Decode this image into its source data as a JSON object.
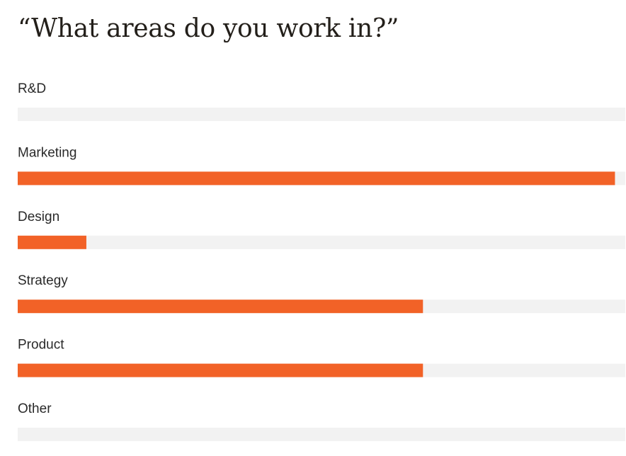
{
  "chart_data": {
    "type": "bar",
    "orientation": "horizontal",
    "title": "“What areas do you work in?”",
    "categories": [
      "R&D",
      "Marketing",
      "Design",
      "Strategy",
      "Product",
      "Other"
    ],
    "values": [
      0,
      0.983,
      0.113,
      0.667,
      0.667,
      0
    ],
    "value_unit": "fraction of bar track",
    "ylim": [
      0,
      1
    ],
    "grid": false,
    "legend": "none"
  },
  "colors": {
    "bar": "#f26227",
    "track": "#f2f2f2",
    "text": "#2a2a2a",
    "title": "#231f1a"
  }
}
